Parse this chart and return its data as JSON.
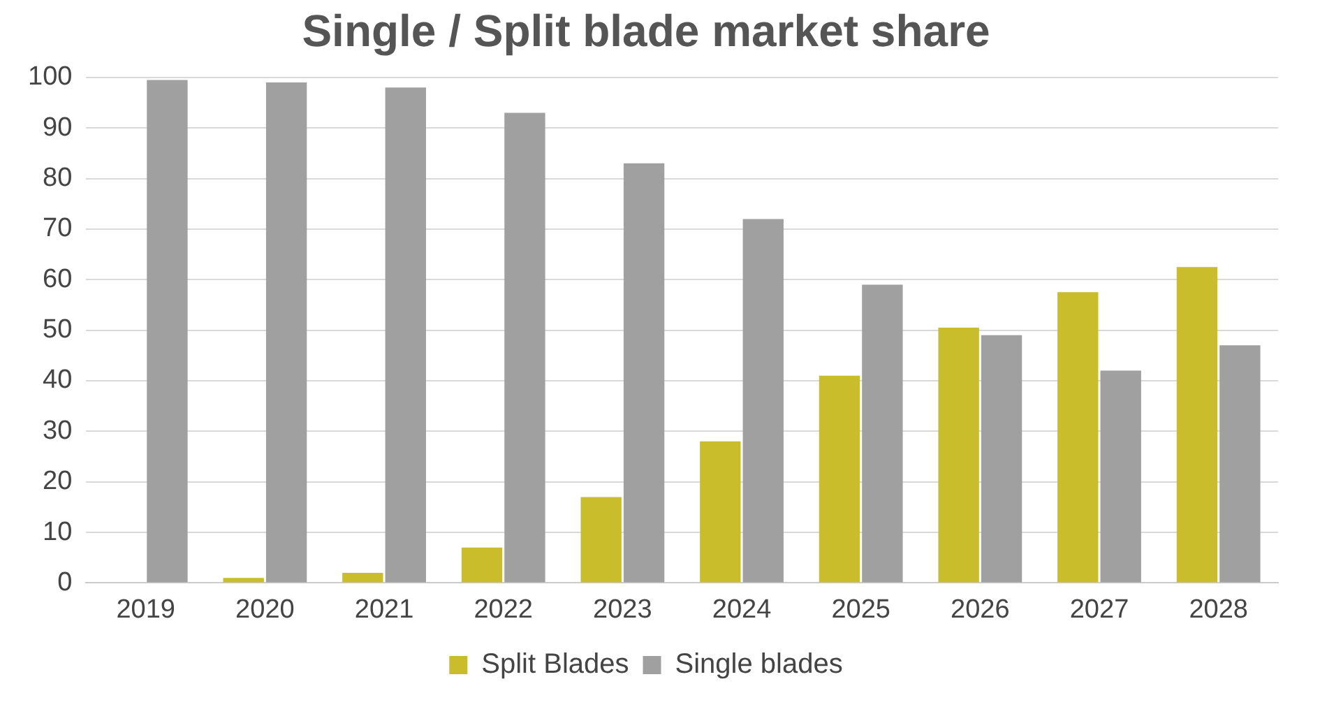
{
  "chart_data": {
    "type": "bar",
    "title": "Single / Split blade market share",
    "categories": [
      "2019",
      "2020",
      "2021",
      "2022",
      "2023",
      "2024",
      "2025",
      "2026",
      "2027",
      "2028"
    ],
    "series": [
      {
        "name": "Split Blades",
        "color": "#c9bd2c",
        "values": [
          0,
          1,
          2,
          7,
          17,
          28,
          41,
          50.5,
          57.5,
          62.5
        ]
      },
      {
        "name": "Single blades",
        "color": "#a0a0a0",
        "values": [
          99.5,
          99,
          98,
          93,
          83,
          72,
          59,
          49,
          42,
          47
        ]
      }
    ],
    "ylim": [
      0,
      100
    ],
    "yticks": [
      0,
      10,
      20,
      30,
      40,
      50,
      60,
      70,
      80,
      90,
      100
    ],
    "grid": "y",
    "legend": "bottom"
  }
}
